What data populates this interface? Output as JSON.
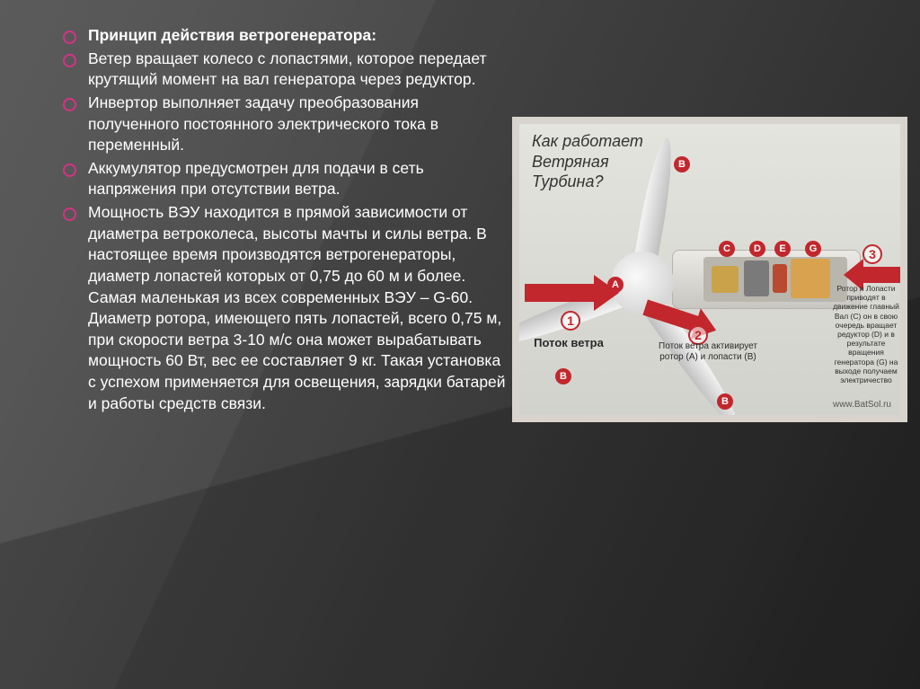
{
  "list": {
    "title": "Принцип действия ветрогенератора:",
    "items": [
      "Ветер вращает колесо с лопастями, которое передает крутящий момент на вал генератора через редуктор.",
      "Инвертор выполняет задачу преобразования полученного постоянного электрического тока в переменный.",
      "Аккумулятор предусмотрен для подачи в сеть напряжения при отсутствии ветра.",
      "Мощность ВЭУ находится в прямой зависимости от диаметра ветроколеса, высоты мачты и силы ветра. В настоящее время производятся ветрогенераторы, диаметр лопастей которых от 0,75 до 60 м и более. Самая маленькая из всех современных ВЭУ – G-60. Диаметр ротора, имеющего пять лопастей, всего 0,75 м, при скорости ветра 3-10 м/с она может вырабатывать мощность 60 Вт, вес ее составляет 9 кг. Такая установка с успехом применяется для освещения, зарядки батарей и работы средств связи."
    ]
  },
  "figure": {
    "title_l1": "Как работает",
    "title_l2": "Ветряная",
    "title_l3": "Турбина?",
    "numbers": {
      "n1": "1",
      "n2": "2",
      "n3": "3"
    },
    "letters": {
      "A": "A",
      "B": "B",
      "C": "C",
      "D": "D",
      "E": "E",
      "G": "G"
    },
    "cap1": "Поток ветра",
    "cap2": "Поток ветра активирует ротор (A) и лопасти (B)",
    "cap3": "Ротор и Лопасти приводят в движение главный Вал (C) он в свою очередь вращает редуктор (D) и в результате вращения генератора (G) на выходе получаем электричество",
    "watermark": "www.BatSol.ru"
  },
  "colors": {
    "bullet": "#d63384",
    "arrow": "#c1272d",
    "text": "#ffffff"
  }
}
